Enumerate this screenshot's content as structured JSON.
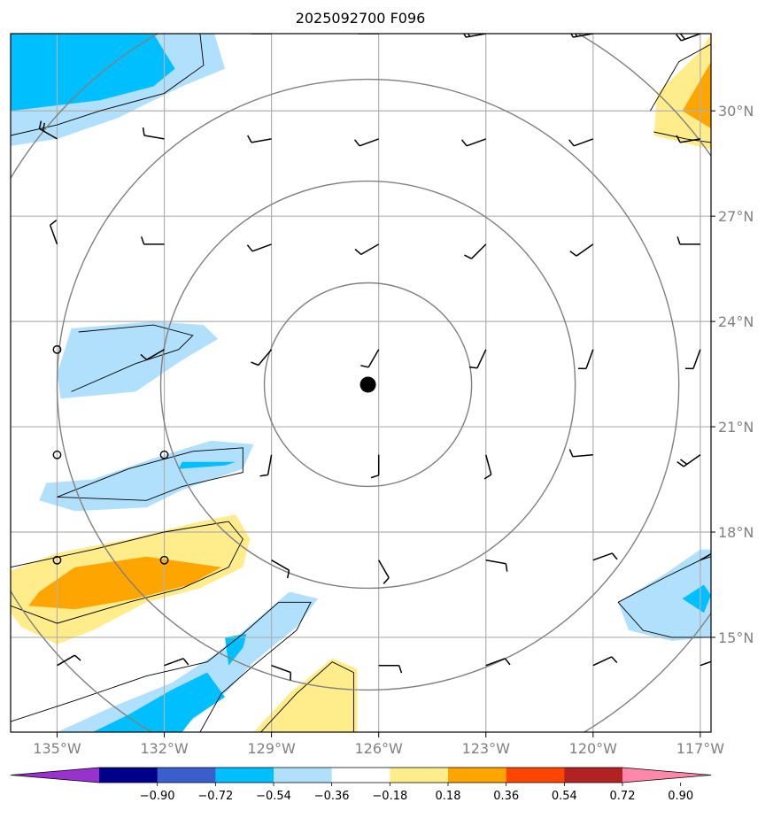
{
  "chart_data": {
    "type": "heatmap",
    "title": "2025092700 F096",
    "xlabel": "",
    "ylabel": "",
    "xlim": [
      -136.3,
      -116.7
    ],
    "ylim": [
      12.3,
      32.2
    ],
    "x_ticks": [
      {
        "value": -135,
        "label": "135°W"
      },
      {
        "value": -132,
        "label": "132°W"
      },
      {
        "value": -129,
        "label": "129°W"
      },
      {
        "value": -126,
        "label": "126°W"
      },
      {
        "value": -123,
        "label": "123°W"
      },
      {
        "value": -120,
        "label": "120°W"
      },
      {
        "value": -117,
        "label": "117°W"
      }
    ],
    "y_ticks": [
      {
        "value": 15,
        "label": "15°N"
      },
      {
        "value": 18,
        "label": "18°N"
      },
      {
        "value": 21,
        "label": "21°N"
      },
      {
        "value": 24,
        "label": "24°N"
      },
      {
        "value": 27,
        "label": "27°N"
      },
      {
        "value": 30,
        "label": "30°N"
      }
    ],
    "grid": true,
    "center": {
      "lon": -126.3,
      "lat": 22.2
    },
    "range_rings_deg": [
      2.9,
      5.8,
      8.7,
      11.6
    ],
    "colorbar": {
      "levels": [
        "−0.90",
        "−0.72",
        "−0.54",
        "−0.36",
        "−0.18",
        "0.18",
        "0.36",
        "0.54",
        "0.72",
        "0.90"
      ],
      "colors": [
        "#9932cc",
        "#00008b",
        "#3a5fcd",
        "#00bfff",
        "#b0e0fb",
        "#ffffff",
        "#ffec8b",
        "#ffa500",
        "#ff4500",
        "#b22222",
        "#ff88aa"
      ]
    },
    "filled_regions": [
      {
        "level": "-0.36",
        "color": "#b0e0fb",
        "points": [
          [
            -136.3,
            32.2
          ],
          [
            -130.6,
            32.2
          ],
          [
            -130.3,
            31.2
          ],
          [
            -131.5,
            30.7
          ],
          [
            -133.3,
            29.8
          ],
          [
            -135.0,
            29.2
          ],
          [
            -136.3,
            29.0
          ]
        ]
      },
      {
        "level": "-0.54",
        "color": "#00bfff",
        "points": [
          [
            -136.3,
            32.2
          ],
          [
            -132.3,
            32.2
          ],
          [
            -131.7,
            31.2
          ],
          [
            -132.3,
            30.7
          ],
          [
            -133.8,
            30.3
          ],
          [
            -136.3,
            30.0
          ]
        ]
      },
      {
        "level": "-0.36",
        "color": "#b0e0fb",
        "points": [
          [
            -134.6,
            23.8
          ],
          [
            -132.3,
            24.0
          ],
          [
            -130.9,
            23.9
          ],
          [
            -130.5,
            23.5
          ],
          [
            -131.5,
            22.9
          ],
          [
            -132.8,
            22.0
          ],
          [
            -134.9,
            21.8
          ],
          [
            -135.0,
            22.5
          ]
        ]
      },
      {
        "level": "-0.36",
        "color": "#b0e0fb",
        "points": [
          [
            -135.3,
            19.4
          ],
          [
            -134.0,
            19.5
          ],
          [
            -132.3,
            20.1
          ],
          [
            -130.7,
            20.6
          ],
          [
            -129.5,
            20.5
          ],
          [
            -129.8,
            19.8
          ],
          [
            -131.5,
            19.2
          ],
          [
            -132.5,
            18.7
          ],
          [
            -134.5,
            18.6
          ],
          [
            -135.5,
            18.9
          ]
        ]
      },
      {
        "level": "-0.54",
        "color": "#00bfff",
        "points": [
          [
            -131.5,
            20.0
          ],
          [
            -130.0,
            20.0
          ],
          [
            -130.3,
            19.9
          ],
          [
            -131.6,
            19.8
          ]
        ]
      },
      {
        "level": "0.36",
        "color": "#ffec8b",
        "points": [
          [
            -136.3,
            16.9
          ],
          [
            -135.0,
            17.4
          ],
          [
            -133.0,
            17.8
          ],
          [
            -131.0,
            18.3
          ],
          [
            -130.0,
            18.5
          ],
          [
            -129.6,
            17.8
          ],
          [
            -129.8,
            17.0
          ],
          [
            -131.0,
            16.4
          ],
          [
            -132.5,
            16.0
          ],
          [
            -134.0,
            15.2
          ],
          [
            -135.0,
            14.8
          ],
          [
            -136.0,
            15.3
          ],
          [
            -136.3,
            15.7
          ]
        ]
      },
      {
        "level": "0.54",
        "color": "#ffa500",
        "points": [
          [
            -135.5,
            16.3
          ],
          [
            -134.5,
            17.0
          ],
          [
            -132.5,
            17.3
          ],
          [
            -130.4,
            17.0
          ],
          [
            -131.3,
            16.5
          ],
          [
            -132.8,
            16.1
          ],
          [
            -134.5,
            15.8
          ],
          [
            -135.8,
            15.9
          ]
        ]
      },
      {
        "level": "-0.36",
        "color": "#b0e0fb",
        "points": [
          [
            -135.0,
            12.3
          ],
          [
            -133.5,
            13.0
          ],
          [
            -131.8,
            13.7
          ],
          [
            -130.6,
            14.5
          ],
          [
            -129.3,
            15.6
          ],
          [
            -128.5,
            16.3
          ],
          [
            -127.7,
            16.1
          ],
          [
            -128.3,
            15.3
          ],
          [
            -129.5,
            14.3
          ],
          [
            -130.2,
            13.5
          ],
          [
            -131.0,
            12.8
          ],
          [
            -131.7,
            12.3
          ]
        ]
      },
      {
        "level": "-0.54",
        "color": "#00bfff",
        "points": [
          [
            -134.0,
            12.3
          ],
          [
            -133.0,
            12.8
          ],
          [
            -131.8,
            13.5
          ],
          [
            -130.8,
            14.0
          ],
          [
            -130.3,
            13.3
          ],
          [
            -131.2,
            12.7
          ],
          [
            -131.5,
            12.3
          ]
        ]
      },
      {
        "level": "-0.54",
        "color": "#00bfff",
        "points": [
          [
            -130.3,
            15.0
          ],
          [
            -129.7,
            15.1
          ],
          [
            -129.8,
            14.7
          ],
          [
            -130.2,
            14.2
          ]
        ]
      },
      {
        "level": "0.36",
        "color": "#ffec8b",
        "points": [
          [
            -129.5,
            12.3
          ],
          [
            -128.5,
            13.4
          ],
          [
            -127.3,
            14.4
          ],
          [
            -126.6,
            14.1
          ],
          [
            -126.6,
            12.3
          ]
        ]
      },
      {
        "level": "-0.36",
        "color": "#b0e0fb",
        "points": [
          [
            -119.3,
            16.0
          ],
          [
            -118.0,
            16.8
          ],
          [
            -117.0,
            17.5
          ],
          [
            -116.7,
            17.5
          ],
          [
            -116.7,
            15.0
          ],
          [
            -117.8,
            14.9
          ],
          [
            -119.0,
            15.2
          ]
        ]
      },
      {
        "level": "-0.54",
        "color": "#00bfff",
        "points": [
          [
            -117.5,
            16.1
          ],
          [
            -116.9,
            16.5
          ],
          [
            -116.7,
            16.2
          ],
          [
            -116.9,
            15.7
          ]
        ]
      },
      {
        "level": "0.36",
        "color": "#ffec8b",
        "points": [
          [
            -118.2,
            30.5
          ],
          [
            -117.0,
            31.7
          ],
          [
            -116.7,
            32.2
          ],
          [
            -116.7,
            28.9
          ],
          [
            -118.3,
            29.3
          ]
        ]
      },
      {
        "level": "0.54",
        "color": "#ffa500",
        "points": [
          [
            -117.5,
            30.0
          ],
          [
            -116.7,
            31.4
          ],
          [
            -116.7,
            29.5
          ]
        ]
      }
    ],
    "contour_lines": [
      [
        [
          -131.0,
          32.2
        ],
        [
          -130.9,
          31.3
        ],
        [
          -132.0,
          30.5
        ],
        [
          -133.8,
          30.0
        ],
        [
          -135.0,
          29.6
        ],
        [
          -136.3,
          29.3
        ]
      ],
      [
        [
          -134.4,
          23.7
        ],
        [
          -132.3,
          23.9
        ],
        [
          -131.2,
          23.6
        ],
        [
          -131.6,
          23.2
        ],
        [
          -132.8,
          22.8
        ],
        [
          -134.6,
          22.0
        ]
      ],
      [
        [
          -135.0,
          19.0
        ],
        [
          -133.0,
          19.8
        ],
        [
          -131.2,
          20.3
        ],
        [
          -129.8,
          20.4
        ],
        [
          -129.8,
          19.7
        ],
        [
          -131.5,
          19.3
        ],
        [
          -132.5,
          18.9
        ],
        [
          -135.0,
          19.0
        ]
      ],
      [
        [
          -136.3,
          17.0
        ],
        [
          -134.0,
          17.5
        ],
        [
          -132.0,
          18.0
        ],
        [
          -130.2,
          18.3
        ],
        [
          -129.8,
          17.8
        ],
        [
          -130.2,
          17.0
        ],
        [
          -131.5,
          16.4
        ],
        [
          -133.0,
          16.0
        ],
        [
          -135.0,
          15.4
        ],
        [
          -136.3,
          15.9
        ]
      ],
      [
        [
          -136.3,
          12.6
        ],
        [
          -134.5,
          13.2
        ],
        [
          -132.5,
          13.9
        ],
        [
          -130.8,
          14.3
        ],
        [
          -129.8,
          15.1
        ],
        [
          -128.8,
          16.0
        ],
        [
          -127.9,
          16.0
        ],
        [
          -128.3,
          15.2
        ],
        [
          -129.5,
          14.2
        ],
        [
          -130.4,
          13.4
        ],
        [
          -131.0,
          12.3
        ]
      ],
      [
        [
          -129.3,
          12.3
        ],
        [
          -128.3,
          13.4
        ],
        [
          -127.3,
          14.3
        ],
        [
          -126.7,
          14.0
        ],
        [
          -126.7,
          12.3
        ]
      ],
      [
        [
          -119.3,
          16.0
        ],
        [
          -118.0,
          16.7
        ],
        [
          -117.0,
          17.2
        ],
        [
          -116.7,
          17.3
        ]
      ],
      [
        [
          -119.3,
          16.0
        ],
        [
          -118.6,
          15.2
        ],
        [
          -117.8,
          15.0
        ],
        [
          -116.7,
          15.0
        ]
      ],
      [
        [
          -118.4,
          30.0
        ],
        [
          -117.6,
          31.4
        ],
        [
          -116.7,
          31.9
        ]
      ],
      [
        [
          -118.3,
          29.4
        ],
        [
          -117.4,
          29.2
        ],
        [
          -116.7,
          29.1
        ]
      ]
    ],
    "wind_barbs": [
      {
        "lon": -135,
        "lat": 32.2,
        "dir": 280,
        "flag": 2
      },
      {
        "lon": -132,
        "lat": 32.2,
        "dir": 280,
        "flag": 2
      },
      {
        "lon": -129,
        "lat": 32.2,
        "dir": 270,
        "flag": 2
      },
      {
        "lon": -126,
        "lat": 32.2,
        "dir": 270,
        "flag": 2
      },
      {
        "lon": -123,
        "lat": 32.2,
        "dir": 260,
        "flag": 2
      },
      {
        "lon": -120,
        "lat": 32.2,
        "dir": 260,
        "flag": 2
      },
      {
        "lon": -117,
        "lat": 32.2,
        "dir": 250,
        "flag": 2
      },
      {
        "lon": -135,
        "lat": 29.2,
        "dir": 300,
        "flag": 2
      },
      {
        "lon": -132,
        "lat": 29.2,
        "dir": 280,
        "flag": 1
      },
      {
        "lon": -129,
        "lat": 29.2,
        "dir": 260,
        "flag": 1
      },
      {
        "lon": -126,
        "lat": 29.2,
        "dir": 250,
        "flag": 1
      },
      {
        "lon": -123,
        "lat": 29.2,
        "dir": 250,
        "flag": 1
      },
      {
        "lon": -120,
        "lat": 29.2,
        "dir": 250,
        "flag": 1
      },
      {
        "lon": -117,
        "lat": 29.2,
        "dir": 260,
        "flag": 1
      },
      {
        "lon": -135,
        "lat": 26.2,
        "dir": 340,
        "flag": 1
      },
      {
        "lon": -132,
        "lat": 26.2,
        "dir": 270,
        "flag": 1
      },
      {
        "lon": -129,
        "lat": 26.2,
        "dir": 250,
        "flag": 1
      },
      {
        "lon": -126,
        "lat": 26.2,
        "dir": 240,
        "flag": 1
      },
      {
        "lon": -123,
        "lat": 26.2,
        "dir": 225,
        "flag": 1
      },
      {
        "lon": -120,
        "lat": 26.2,
        "dir": 235,
        "flag": 1
      },
      {
        "lon": -117,
        "lat": 26.2,
        "dir": 270,
        "flag": 1
      },
      {
        "lon": -132,
        "lat": 23.2,
        "dir": 240,
        "flag": 1
      },
      {
        "lon": -129,
        "lat": 23.2,
        "dir": 220,
        "flag": 1
      },
      {
        "lon": -126,
        "lat": 23.2,
        "dir": 210,
        "flag": 1
      },
      {
        "lon": -123,
        "lat": 23.2,
        "dir": 205,
        "flag": 1
      },
      {
        "lon": -120,
        "lat": 23.2,
        "dir": 200,
        "flag": 1
      },
      {
        "lon": -117,
        "lat": 23.2,
        "dir": 200,
        "flag": 1
      },
      {
        "lon": -129,
        "lat": 20.2,
        "dir": 190,
        "flag": 1
      },
      {
        "lon": -126,
        "lat": 20.2,
        "dir": 180,
        "flag": 1
      },
      {
        "lon": -123,
        "lat": 20.2,
        "dir": 165,
        "flag": 1
      },
      {
        "lon": -120,
        "lat": 20.2,
        "dir": 265,
        "flag": 1
      },
      {
        "lon": -117,
        "lat": 20.2,
        "dir": 235,
        "flag": 2
      },
      {
        "lon": -129,
        "lat": 17.2,
        "dir": 120,
        "flag": 1
      },
      {
        "lon": -126,
        "lat": 17.2,
        "dir": 150,
        "flag": 1
      },
      {
        "lon": -123,
        "lat": 17.2,
        "dir": 100,
        "flag": 1
      },
      {
        "lon": -120,
        "lat": 17.2,
        "dir": 70,
        "flag": 1
      },
      {
        "lon": -117,
        "lat": 17.2,
        "dir": 60,
        "flag": 2
      },
      {
        "lon": -135,
        "lat": 14.2,
        "dir": 60,
        "flag": 1
      },
      {
        "lon": -132,
        "lat": 14.2,
        "dir": 70,
        "flag": 1
      },
      {
        "lon": -129,
        "lat": 14.2,
        "dir": 110,
        "flag": 1
      },
      {
        "lon": -126,
        "lat": 14.2,
        "dir": 90,
        "flag": 1
      },
      {
        "lon": -123,
        "lat": 14.2,
        "dir": 70,
        "flag": 1
      },
      {
        "lon": -120,
        "lat": 14.2,
        "dir": 65,
        "flag": 1
      },
      {
        "lon": -117,
        "lat": 14.2,
        "dir": 70,
        "flag": 1
      }
    ],
    "calm_points": [
      {
        "lon": -135,
        "lat": 23.2
      },
      {
        "lon": -135,
        "lat": 20.2
      },
      {
        "lon": -132,
        "lat": 20.2
      },
      {
        "lon": -135,
        "lat": 17.2
      },
      {
        "lon": -132,
        "lat": 17.2
      }
    ]
  }
}
